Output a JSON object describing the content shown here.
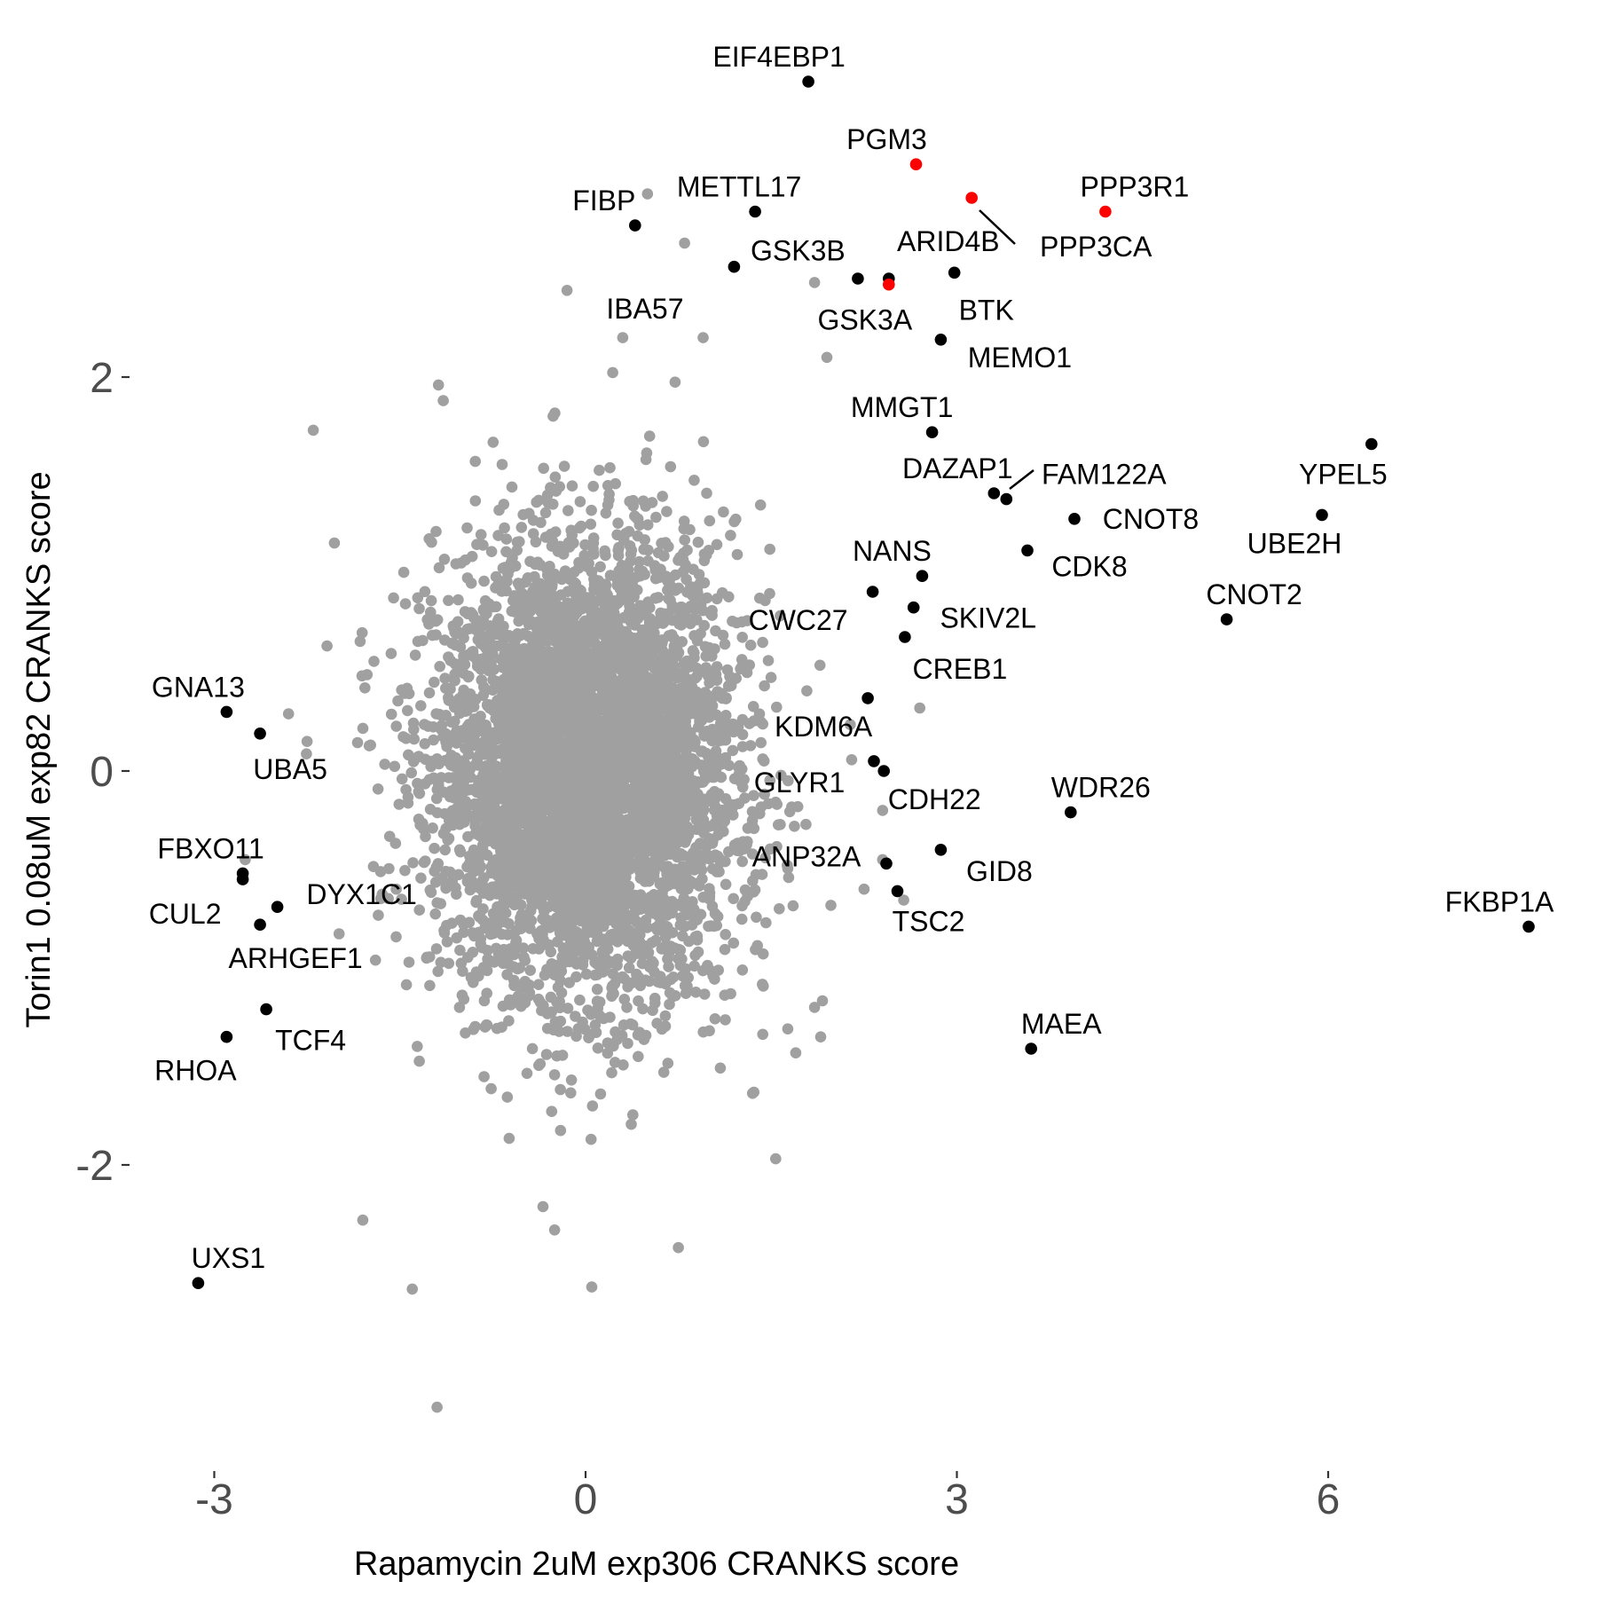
{
  "chart_data": {
    "type": "scatter",
    "xlabel": "Rapamycin 2uM exp306 CRANKS score",
    "ylabel": "Torin1 0.08uM exp82 CRANKS score",
    "xlim": [
      -3.3,
      7.8
    ],
    "ylim": [
      -3.5,
      3.55
    ],
    "x_ticks": [
      -3,
      0,
      3,
      6
    ],
    "x_tick_labels": [
      "-3",
      "0",
      "3",
      "6"
    ],
    "y_ticks": [
      -2,
      0,
      2
    ],
    "y_tick_labels": [
      "-2",
      "0",
      "2"
    ],
    "grid": false,
    "legend": "none",
    "colors": {
      "background_points": "#a0a0a0",
      "labeled_points": "#000000",
      "highlight_points": "#ff0000",
      "tick_labels": "#4d4d4d",
      "text": "#000000"
    },
    "background_cloud": {
      "description": "dense cloud of unlabeled genes",
      "center": [
        0.0,
        0.0
      ],
      "spread": [
        0.6,
        0.55
      ],
      "outliers": [
        [
          -2.2,
          1.73
        ],
        [
          -1.15,
          1.88
        ],
        [
          0.5,
          2.93
        ],
        [
          0.8,
          2.68
        ],
        [
          -0.15,
          2.44
        ],
        [
          1.85,
          2.48
        ],
        [
          1.95,
          2.1
        ],
        [
          2.7,
          0.32
        ],
        [
          2.4,
          -0.2
        ],
        [
          2.4,
          -0.45
        ],
        [
          2.25,
          -0.6
        ],
        [
          -1.2,
          -3.23
        ],
        [
          0.75,
          -2.42
        ],
        [
          0.05,
          -2.62
        ],
        [
          -1.4,
          -2.63
        ],
        [
          -0.25,
          -2.33
        ],
        [
          -1.8,
          -2.28
        ],
        [
          -2.75,
          -0.45
        ],
        [
          -2.4,
          0.29
        ],
        [
          -2.25,
          0.15
        ],
        [
          1.9,
          -1.35
        ],
        [
          1.85,
          -1.2
        ],
        [
          0.95,
          2.2
        ],
        [
          0.3,
          2.2
        ]
      ]
    },
    "points": [
      {
        "label": "EIF4EBP1",
        "x": 1.8,
        "y": 3.5,
        "color": "black"
      },
      {
        "label": "PGM3",
        "x": 2.67,
        "y": 3.08,
        "color": "red"
      },
      {
        "label": "PPP3R1",
        "x": 4.2,
        "y": 2.84,
        "color": "red"
      },
      {
        "label": "PPP3CA",
        "x": 3.12,
        "y": 2.91,
        "color": "red"
      },
      {
        "label": "FIBP",
        "x": 0.4,
        "y": 2.77,
        "color": "black"
      },
      {
        "label": "METTL17",
        "x": 1.37,
        "y": 2.84,
        "color": "black"
      },
      {
        "label": "GSK3B",
        "x": 1.2,
        "y": 2.56,
        "color": "black"
      },
      {
        "label": "ARID4B",
        "x": 2.45,
        "y": 2.5,
        "color": "black"
      },
      {
        "label": "GSK3A",
        "x": 2.45,
        "y": 2.47,
        "color": "red"
      },
      {
        "label": "IBA57",
        "x": 2.2,
        "y": 2.5,
        "color": "black"
      },
      {
        "label": "BTK",
        "x": 2.98,
        "y": 2.53,
        "color": "black"
      },
      {
        "label": "MEMO1",
        "x": 2.87,
        "y": 2.19,
        "color": "black"
      },
      {
        "label": "MMGT1",
        "x": 2.8,
        "y": 1.72,
        "color": "black"
      },
      {
        "label": "DAZAP1",
        "x": 3.3,
        "y": 1.41,
        "color": "black"
      },
      {
        "label": "FAM122A",
        "x": 3.4,
        "y": 1.38,
        "color": "black"
      },
      {
        "label": "CNOT8",
        "x": 3.95,
        "y": 1.28,
        "color": "black"
      },
      {
        "label": "YPEL5",
        "x": 6.35,
        "y": 1.66,
        "color": "black"
      },
      {
        "label": "UBE2H",
        "x": 5.95,
        "y": 1.3,
        "color": "black"
      },
      {
        "label": "CNOT2",
        "x": 5.18,
        "y": 0.77,
        "color": "black"
      },
      {
        "label": "CDK8",
        "x": 3.57,
        "y": 1.12,
        "color": "black"
      },
      {
        "label": "NANS",
        "x": 2.72,
        "y": 0.99,
        "color": "black"
      },
      {
        "label": "CWC27",
        "x": 2.32,
        "y": 0.91,
        "color": "black"
      },
      {
        "label": "SKIV2L",
        "x": 2.65,
        "y": 0.83,
        "color": "black"
      },
      {
        "label": "CREB1",
        "x": 2.58,
        "y": 0.68,
        "color": "black"
      },
      {
        "label": "KDM6A",
        "x": 2.28,
        "y": 0.37,
        "color": "black"
      },
      {
        "label": "GLYR1",
        "x": 2.33,
        "y": 0.05,
        "color": "black"
      },
      {
        "label": "CDH22",
        "x": 2.41,
        "y": 0.0,
        "color": "black"
      },
      {
        "label": "WDR26",
        "x": 3.92,
        "y": -0.21,
        "color": "black"
      },
      {
        "label": "ANP32A",
        "x": 2.43,
        "y": -0.47,
        "color": "black"
      },
      {
        "label": "GID8",
        "x": 2.87,
        "y": -0.4,
        "color": "black"
      },
      {
        "label": "TSC2",
        "x": 2.52,
        "y": -0.61,
        "color": "black"
      },
      {
        "label": "FKBP1A",
        "x": 7.62,
        "y": -0.79,
        "color": "black"
      },
      {
        "label": "MAEA",
        "x": 3.6,
        "y": -1.41,
        "color": "black"
      },
      {
        "label": "GNA13",
        "x": -2.9,
        "y": 0.3,
        "color": "black"
      },
      {
        "label": "UBA5",
        "x": -2.63,
        "y": 0.19,
        "color": "black"
      },
      {
        "label": "FBXO11",
        "x": -2.77,
        "y": -0.52,
        "color": "black"
      },
      {
        "label": "CUL2",
        "x": -2.77,
        "y": -0.55,
        "color": "black"
      },
      {
        "label": "DYX1C1",
        "x": -2.49,
        "y": -0.69,
        "color": "black"
      },
      {
        "label": "ARHGEF1",
        "x": -2.63,
        "y": -0.78,
        "color": "black"
      },
      {
        "label": "TCF4",
        "x": -2.58,
        "y": -1.21,
        "color": "black"
      },
      {
        "label": "RHOA",
        "x": -2.9,
        "y": -1.35,
        "color": "black"
      },
      {
        "label": "UXS1",
        "x": -3.13,
        "y": -2.6,
        "color": "black"
      }
    ]
  }
}
